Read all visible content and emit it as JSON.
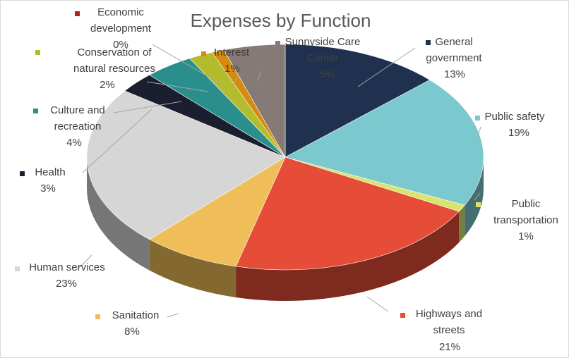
{
  "chart_data": {
    "type": "pie",
    "title": "Expenses by Function",
    "series": [
      {
        "slices": [
          {
            "label": "General government",
            "lines": [
              "General",
              "government"
            ],
            "value": 13,
            "display": "13%",
            "color": "#203150"
          },
          {
            "label": "Public safety",
            "lines": [
              "Public safety"
            ],
            "value": 19,
            "display": "19%",
            "color": "#7bc8cf"
          },
          {
            "label": "Public transportation",
            "lines": [
              "Public",
              "transportation"
            ],
            "value": 1,
            "display": "1%",
            "color": "#d9e46f"
          },
          {
            "label": "Highways and streets",
            "lines": [
              "Highways and",
              "streets"
            ],
            "value": 21,
            "display": "21%",
            "color": "#e64d38"
          },
          {
            "label": "Sanitation",
            "lines": [
              "Sanitation"
            ],
            "value": 8,
            "display": "8%",
            "color": "#efbe58"
          },
          {
            "label": "Human services",
            "lines": [
              "Human services"
            ],
            "value": 23,
            "display": "23%",
            "color": "#d6d6d6"
          },
          {
            "label": "Health",
            "lines": [
              "Health"
            ],
            "value": 3,
            "display": "3%",
            "color": "#1b1e2e"
          },
          {
            "label": "Culture and recreation",
            "lines": [
              "Culture and",
              "recreation"
            ],
            "value": 4,
            "display": "4%",
            "color": "#2a8f8c"
          },
          {
            "label": "Conservation of natural resources",
            "lines": [
              "Conservation of",
              "natural resources"
            ],
            "value": 2,
            "display": "2%",
            "color": "#b3bc2c"
          },
          {
            "label": "Economic development",
            "lines": [
              "Economic",
              "development"
            ],
            "value": 0,
            "display": "0%",
            "color": "#b22222"
          },
          {
            "label": "Interest",
            "lines": [
              "Interest"
            ],
            "value": 1,
            "display": "1%",
            "color": "#d68a0f"
          },
          {
            "label": "Sunnyside Care Center",
            "lines": [
              "Sunnyside Care",
              "Center"
            ],
            "value": 5,
            "display": "5%",
            "color": "#857a76"
          }
        ]
      }
    ],
    "legend": "none",
    "view": "3d-tilted"
  }
}
